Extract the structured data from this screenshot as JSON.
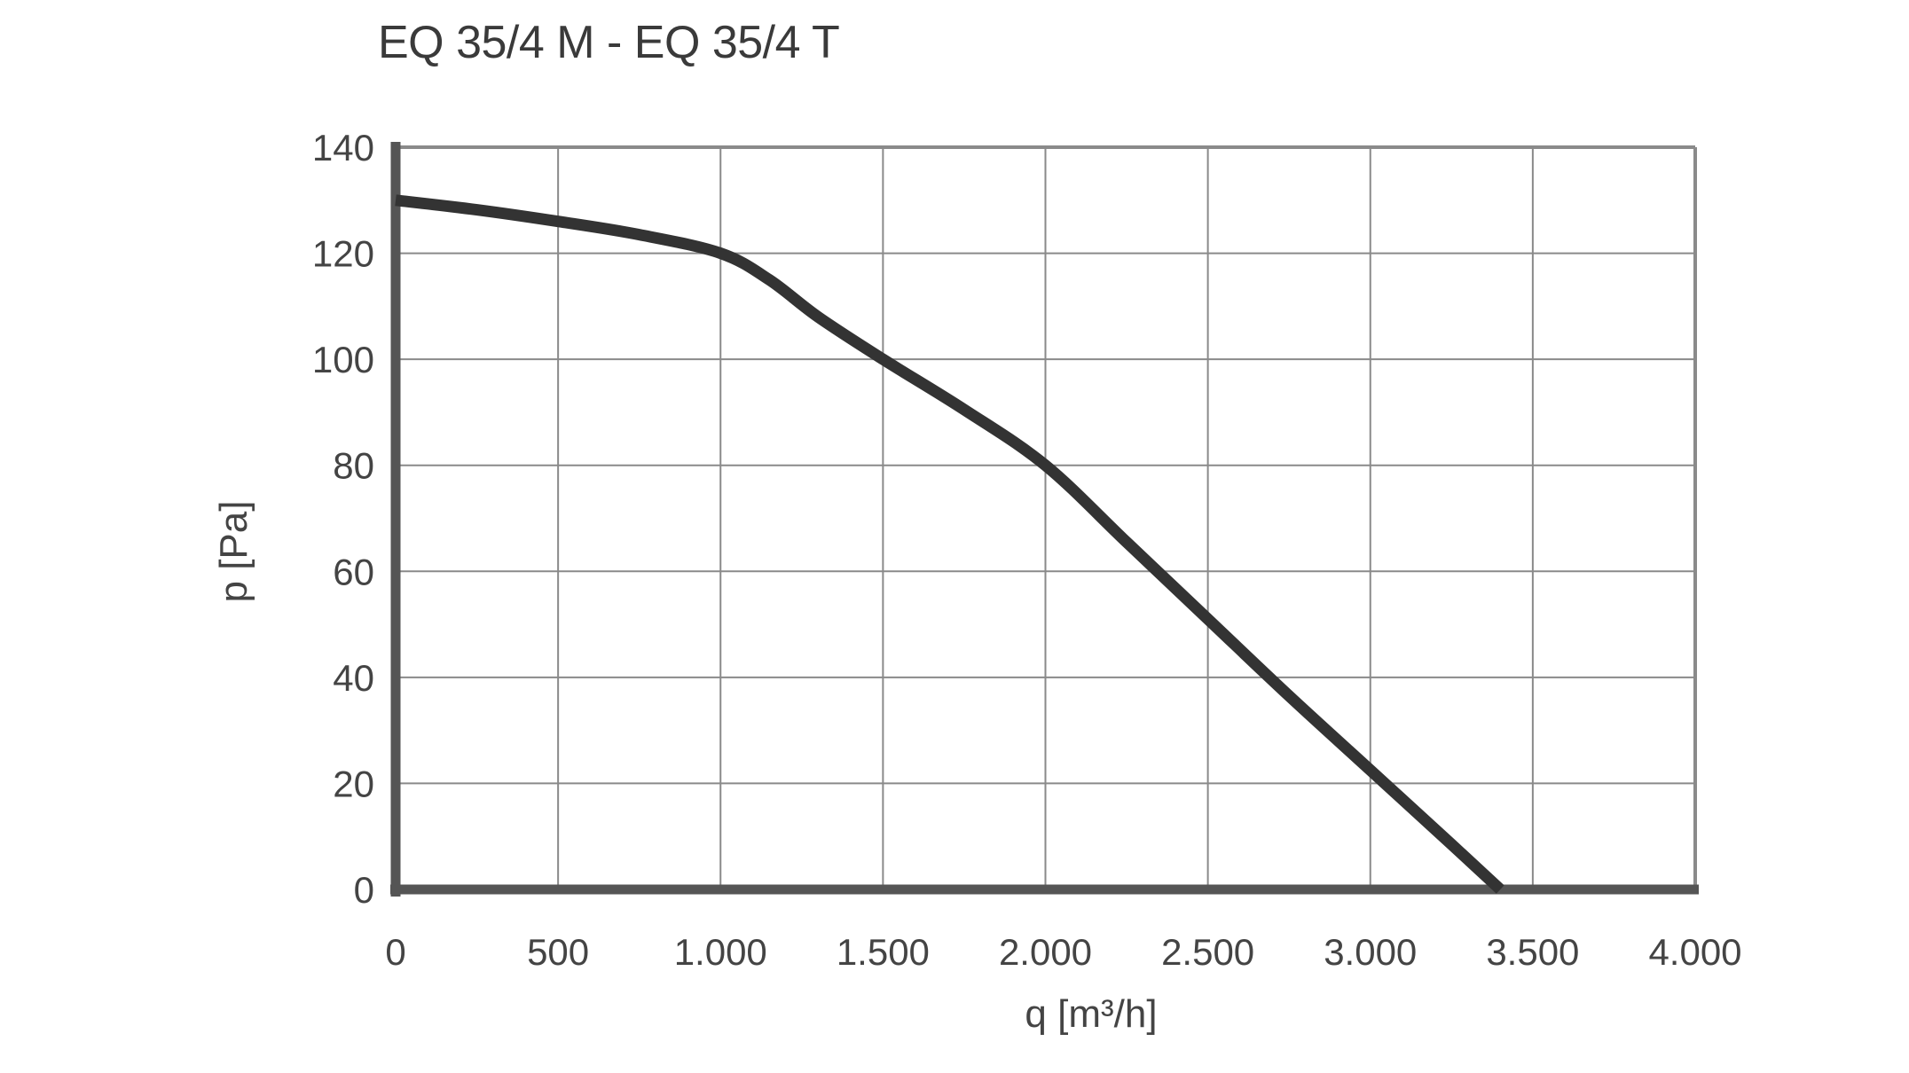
{
  "chart_data": {
    "type": "line",
    "title": "EQ 35/4 M - EQ 35/4 T",
    "xlabel": "q [m³/h]",
    "ylabel": "p [Pa]",
    "xlim": [
      0,
      4000
    ],
    "ylim": [
      0,
      140
    ],
    "grid": true,
    "x_ticks": [
      0,
      500,
      1000,
      1500,
      2000,
      2500,
      3000,
      3500,
      4000
    ],
    "x_tick_labels": [
      "0",
      "500",
      "1.000",
      "1.500",
      "2.000",
      "2.500",
      "3.000",
      "3.500",
      "4.000"
    ],
    "y_ticks": [
      0,
      20,
      40,
      60,
      80,
      100,
      120,
      140
    ],
    "y_tick_labels": [
      "0",
      "20",
      "40",
      "60",
      "80",
      "100",
      "120",
      "140"
    ],
    "series": [
      {
        "name": "EQ 35/4",
        "color": "#333333",
        "x": [
          0,
          250,
          500,
          750,
          1000,
          1150,
          1300,
          1500,
          1750,
          2000,
          2250,
          2500,
          2750,
          3000,
          3250,
          3400
        ],
        "y": [
          130,
          128.2,
          126,
          123.5,
          120,
          115,
          108,
          100,
          90.5,
          80,
          65.5,
          51,
          36.5,
          22.5,
          8.5,
          0
        ]
      }
    ]
  }
}
